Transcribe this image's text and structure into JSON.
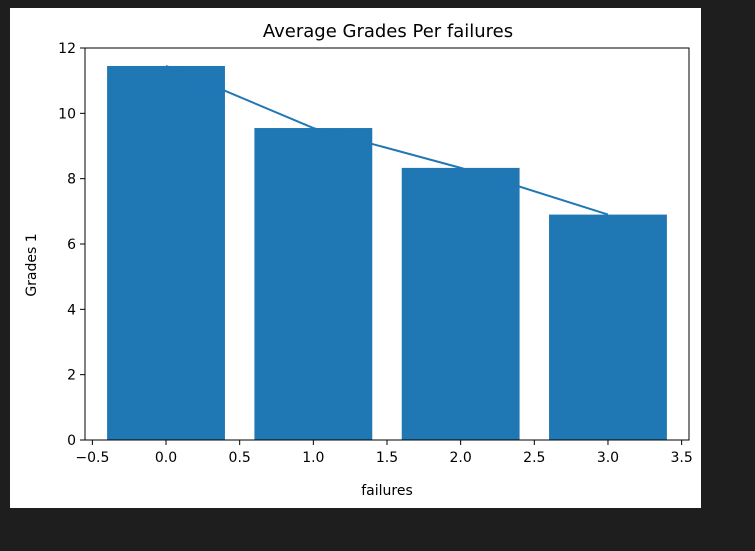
{
  "colors": {
    "page_background": "#1e1e1e",
    "figure_background": "#ffffff",
    "bar": "#1f77b4",
    "line": "#1f77b4"
  },
  "chart_data": {
    "type": "bar",
    "title": "Average Grades Per failures",
    "xlabel": "failures",
    "ylabel": "Grades 1",
    "xlim": [
      -0.55,
      3.55
    ],
    "ylim": [
      0,
      12
    ],
    "bar_width": 0.8,
    "grid": false,
    "x_ticks": [
      -0.5,
      0.0,
      0.5,
      1.0,
      1.5,
      2.0,
      2.5,
      3.0,
      3.5
    ],
    "x_tick_labels": [
      "−0.5",
      "0.0",
      "0.5",
      "1.0",
      "1.5",
      "2.0",
      "2.5",
      "3.0",
      "3.5"
    ],
    "y_ticks": [
      0,
      2,
      4,
      6,
      8,
      10,
      12
    ],
    "y_tick_labels": [
      "0",
      "2",
      "4",
      "6",
      "8",
      "10",
      "12"
    ],
    "series": [
      {
        "type": "bar",
        "x": [
          0,
          1,
          2,
          3
        ],
        "values": [
          11.45,
          9.55,
          8.33,
          6.9
        ]
      },
      {
        "type": "line",
        "x": [
          0,
          1,
          2,
          3
        ],
        "values": [
          11.45,
          9.55,
          8.33,
          6.9
        ]
      }
    ]
  }
}
